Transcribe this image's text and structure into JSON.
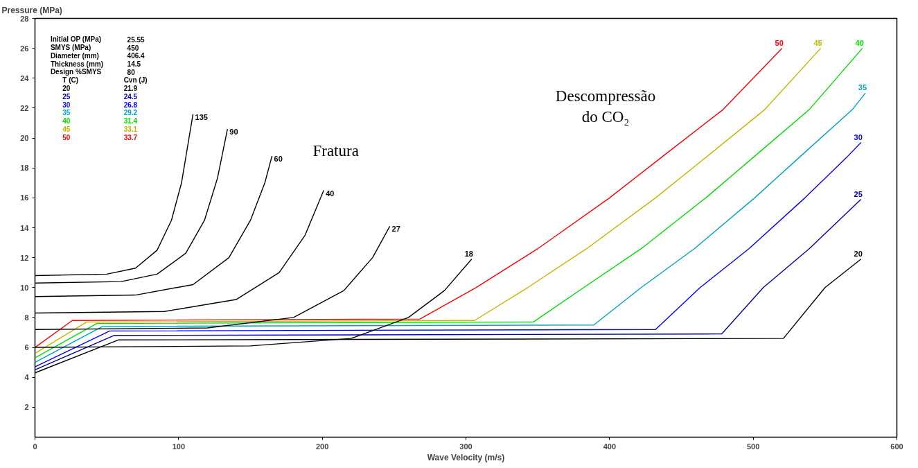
{
  "chart_data": {
    "type": "line",
    "xlabel": "Wave Velocity (m/s)",
    "ylabel": "Pressure (MPa)",
    "xlim": [
      0,
      600
    ],
    "xticks": [
      0,
      100,
      200,
      300,
      400,
      500,
      600
    ],
    "ylim": [
      0,
      28
    ],
    "yticks": [
      2,
      4,
      6,
      8,
      10,
      12,
      14,
      16,
      18,
      20,
      22,
      24,
      26,
      28
    ],
    "grid": false,
    "marker": "none",
    "line_style": "solid",
    "series": [
      {
        "name": "20",
        "color": "#000000",
        "x": [
          0,
          58,
          521,
          550,
          575
        ],
        "values": [
          4.3,
          6.5,
          6.6,
          10.0,
          11.9
        ]
      },
      {
        "name": "25",
        "color": "#0000a0",
        "x": [
          0,
          55,
          478,
          507,
          539,
          575
        ],
        "values": [
          4.5,
          6.8,
          6.9,
          10.0,
          12.6,
          15.9
        ]
      },
      {
        "name": "30",
        "color": "#0000ff",
        "x": [
          0,
          52,
          432,
          463,
          497,
          536,
          565,
          575
        ],
        "values": [
          4.7,
          7.1,
          7.2,
          10.0,
          12.6,
          16.0,
          18.7,
          19.7
        ]
      },
      {
        "name": "35",
        "color": "#00a0c0",
        "x": [
          0,
          47,
          389,
          422,
          459,
          501,
          532,
          569,
          578
        ],
        "values": [
          5.0,
          7.4,
          7.5,
          10.0,
          12.6,
          16.0,
          18.7,
          21.9,
          23.0
        ]
      },
      {
        "name": "40",
        "color": "#00dd00",
        "x": [
          0,
          43,
          347,
          382,
          422,
          467,
          500,
          539,
          576
        ],
        "values": [
          5.3,
          7.6,
          7.7,
          10.0,
          12.6,
          16.0,
          18.7,
          21.9,
          26.0
        ]
      },
      {
        "name": "45",
        "color": "#c8b400",
        "x": [
          0,
          36,
          306,
          343,
          384,
          432,
          467,
          508,
          547
        ],
        "values": [
          5.6,
          7.7,
          7.8,
          10.0,
          12.6,
          16.0,
          18.7,
          21.9,
          26.0
        ]
      },
      {
        "name": "50",
        "color": "#ff0000",
        "x": [
          0,
          26,
          268,
          307,
          350,
          400,
          436,
          479,
          520
        ],
        "values": [
          6.0,
          7.8,
          7.9,
          10.0,
          12.6,
          16.0,
          18.7,
          21.9,
          26.0
        ]
      },
      {
        "name": "135",
        "color": "#000000",
        "x": [
          0,
          50,
          70,
          85,
          95,
          102,
          110
        ],
        "values": [
          10.8,
          10.9,
          11.3,
          12.5,
          14.5,
          17.0,
          21.6
        ]
      },
      {
        "name": "90",
        "color": "#000000",
        "x": [
          0,
          60,
          85,
          105,
          118,
          127,
          134
        ],
        "values": [
          10.3,
          10.4,
          10.9,
          12.3,
          14.5,
          17.3,
          20.6
        ]
      },
      {
        "name": "60",
        "color": "#000000",
        "x": [
          0,
          70,
          110,
          135,
          150,
          160,
          165
        ],
        "values": [
          9.4,
          9.5,
          10.2,
          12.0,
          14.5,
          17.0,
          18.8
        ]
      },
      {
        "name": "40",
        "color": "#000000",
        "x": [
          0,
          90,
          140,
          170,
          188,
          201
        ],
        "values": [
          8.3,
          8.4,
          9.2,
          11.0,
          13.5,
          16.5
        ]
      },
      {
        "name": "27",
        "color": "#000000",
        "x": [
          0,
          120,
          180,
          215,
          235,
          247
        ],
        "values": [
          7.2,
          7.3,
          8.0,
          9.8,
          12.0,
          14.1
        ]
      },
      {
        "name": "18",
        "color": "#000000",
        "x": [
          0,
          150,
          220,
          260,
          285,
          304
        ],
        "values": [
          6.0,
          6.1,
          6.6,
          8.0,
          9.8,
          11.9
        ]
      }
    ],
    "annotations": [
      "Initial OP (MPa)",
      "25.55",
      "SMYS (MPa)",
      "450",
      "Diameter (mm)",
      "406.4",
      "Thickness (mm)",
      "14.5",
      "Design %SMYS",
      "80",
      "T (C)",
      "Cvn (J)",
      "20",
      "21.9",
      "25",
      "24.5",
      "30",
      "26.8",
      "35",
      "29.2",
      "40",
      "31.4",
      "45",
      "33.1",
      "50",
      "33.7",
      "Fratura",
      "Descompressão\ndo CO₂"
    ]
  }
}
